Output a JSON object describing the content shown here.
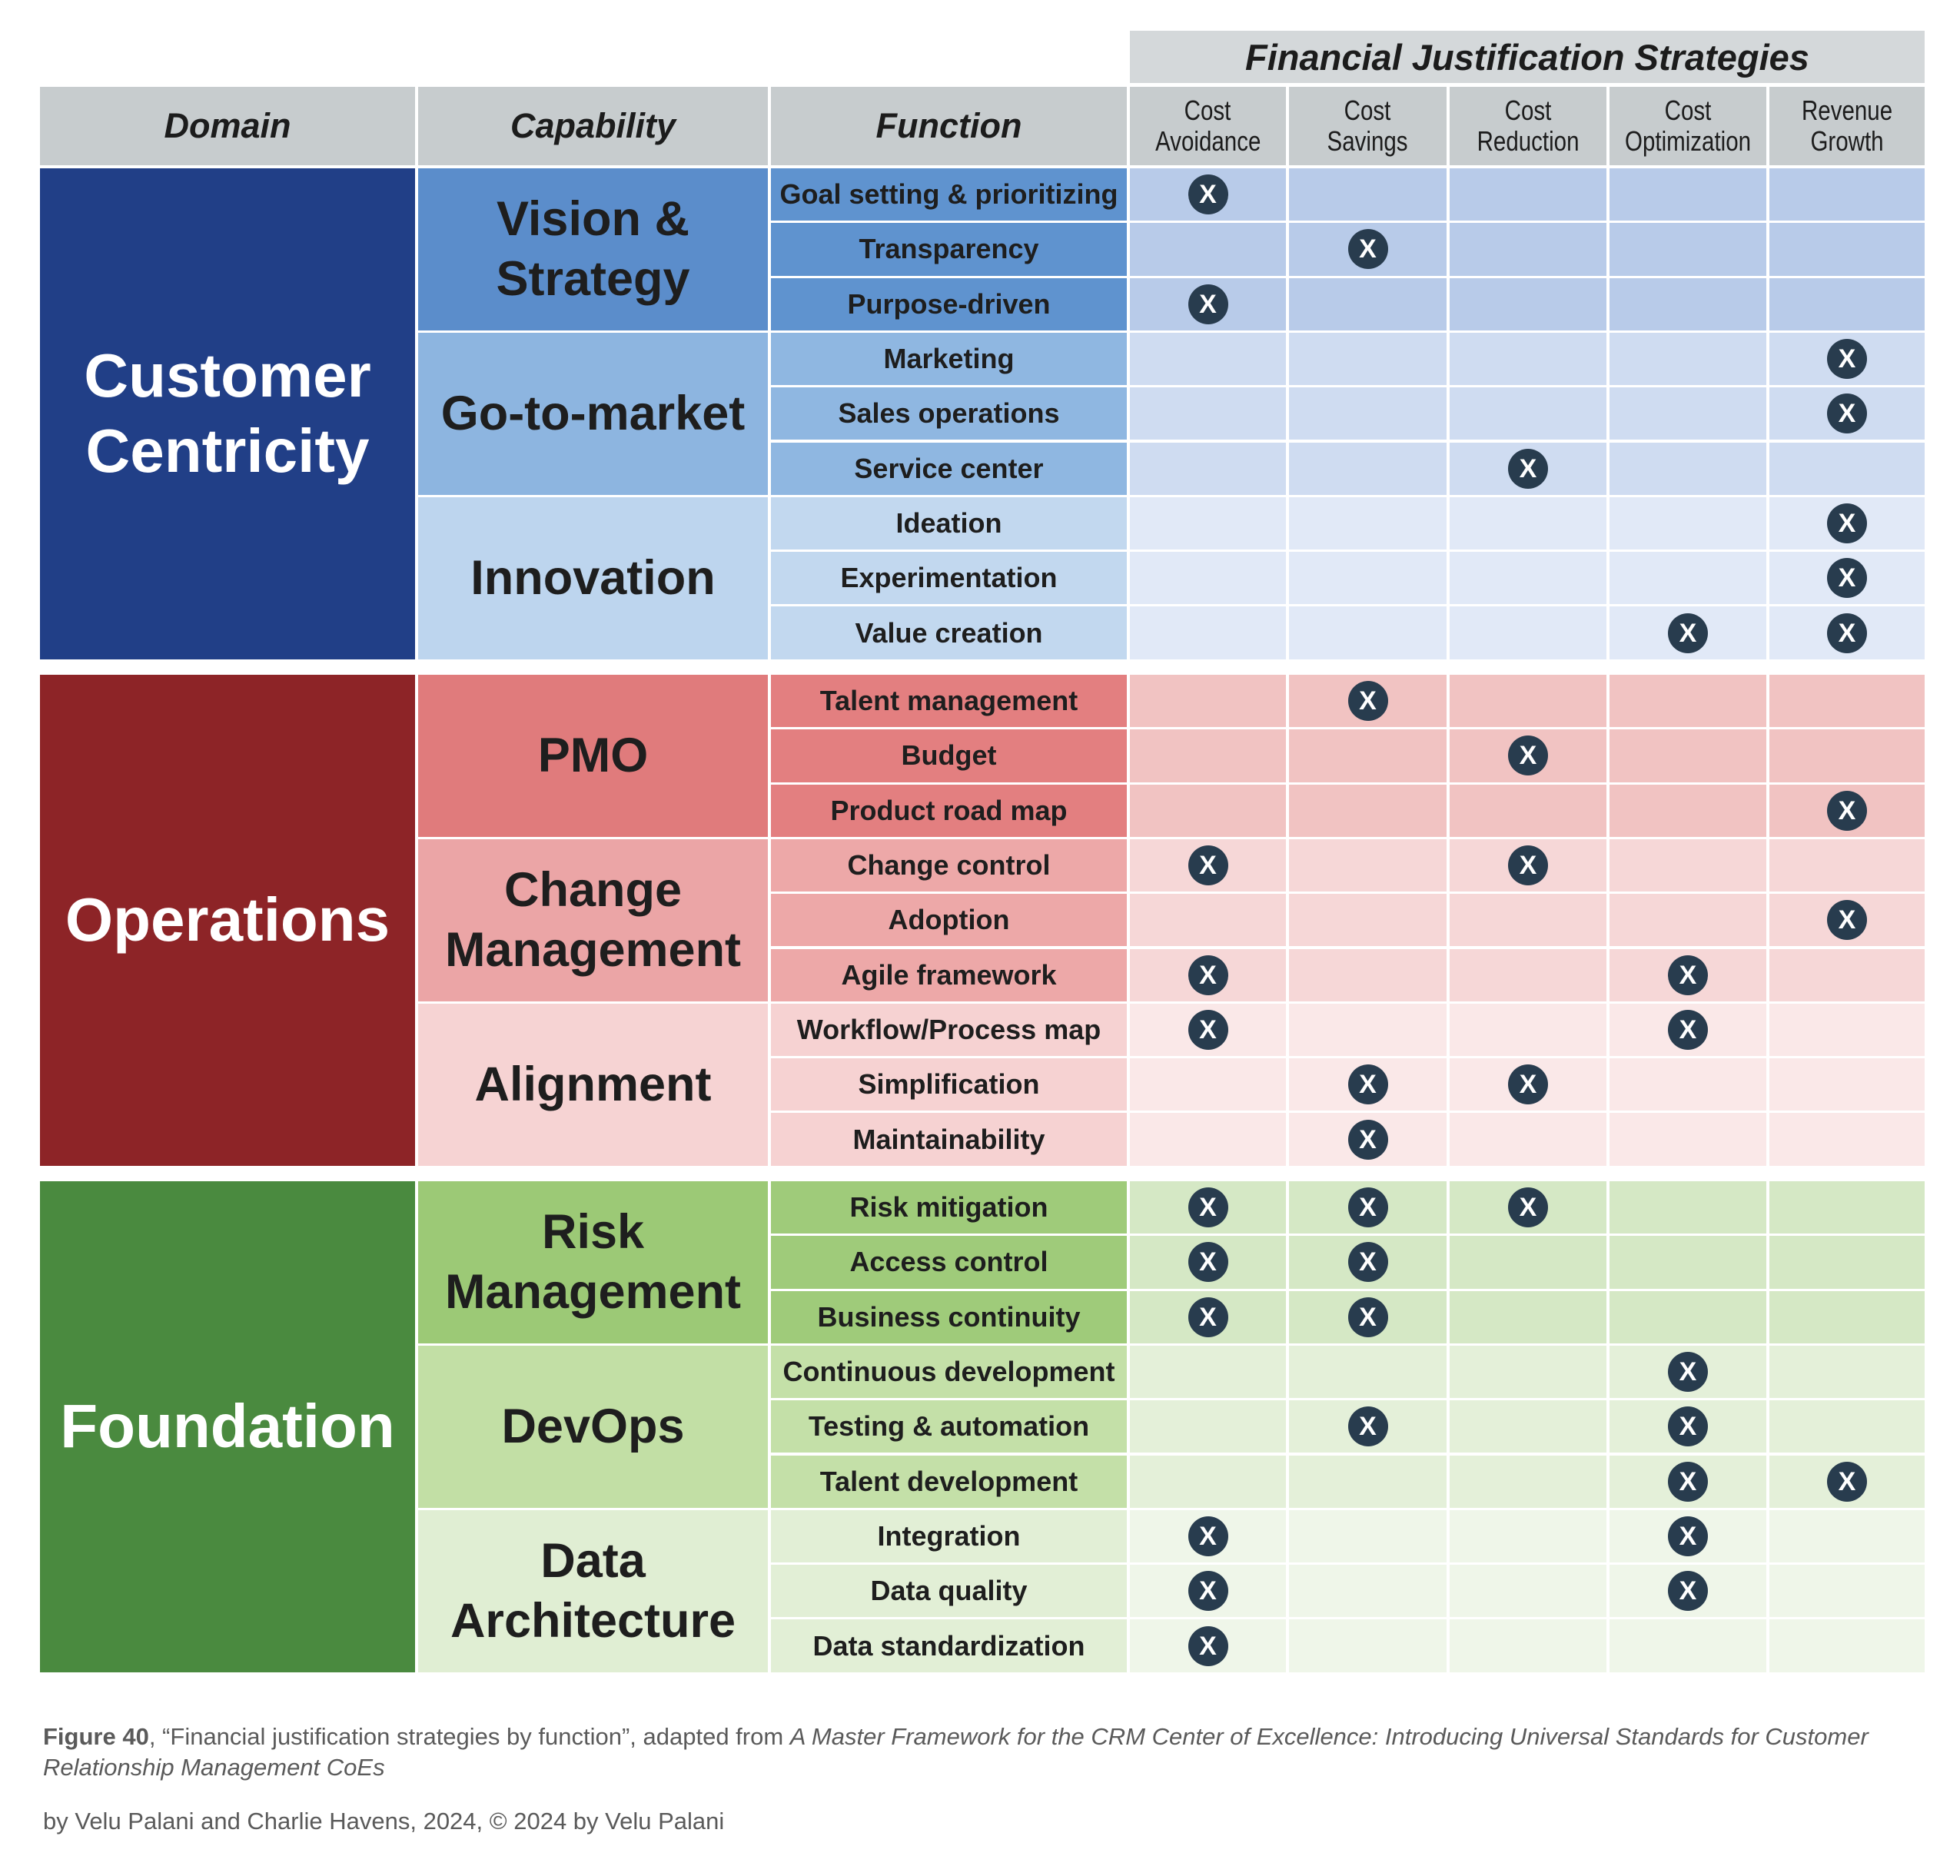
{
  "title": "Financial Justification Strategies",
  "headers": {
    "domain": "Domain",
    "capability": "Capability",
    "function": "Function"
  },
  "strategies": [
    [
      "Cost",
      "Avoidance"
    ],
    [
      "Cost",
      "Savings"
    ],
    [
      "Cost",
      "Reduction"
    ],
    [
      "Cost",
      "Optimization"
    ],
    [
      "Revenue",
      "Growth"
    ]
  ],
  "mark_symbol": "X",
  "colors": {
    "customer_centricity": "#213f87",
    "operations": "#8d2427",
    "foundation": "#4a8a3f"
  },
  "domains": [
    {
      "name": "Customer Centricity",
      "capabilities": [
        {
          "name": "Vision & Strategy",
          "functions": [
            {
              "name": "Goal setting & prioritizing",
              "marks": [
                1,
                0,
                0,
                0,
                0
              ]
            },
            {
              "name": "Transparency",
              "marks": [
                0,
                1,
                0,
                0,
                0
              ]
            },
            {
              "name": "Purpose-driven",
              "marks": [
                1,
                0,
                0,
                0,
                0
              ]
            }
          ]
        },
        {
          "name": "Go-to-market",
          "functions": [
            {
              "name": "Marketing",
              "marks": [
                0,
                0,
                0,
                0,
                1
              ]
            },
            {
              "name": "Sales operations",
              "marks": [
                0,
                0,
                0,
                0,
                1
              ]
            },
            {
              "name": "Service center",
              "marks": [
                0,
                0,
                1,
                0,
                0
              ]
            }
          ]
        },
        {
          "name": "Innovation",
          "functions": [
            {
              "name": "Ideation",
              "marks": [
                0,
                0,
                0,
                0,
                1
              ]
            },
            {
              "name": "Experimentation",
              "marks": [
                0,
                0,
                0,
                0,
                1
              ]
            },
            {
              "name": "Value creation",
              "marks": [
                0,
                0,
                0,
                1,
                1
              ]
            }
          ]
        }
      ]
    },
    {
      "name": "Operations",
      "capabilities": [
        {
          "name": "PMO",
          "functions": [
            {
              "name": "Talent management",
              "marks": [
                0,
                1,
                0,
                0,
                0
              ]
            },
            {
              "name": "Budget",
              "marks": [
                0,
                0,
                1,
                0,
                0
              ]
            },
            {
              "name": "Product road map",
              "marks": [
                0,
                0,
                0,
                0,
                1
              ]
            }
          ]
        },
        {
          "name": "Change Management",
          "functions": [
            {
              "name": "Change control",
              "marks": [
                1,
                0,
                1,
                0,
                0
              ]
            },
            {
              "name": "Adoption",
              "marks": [
                0,
                0,
                0,
                0,
                1
              ]
            },
            {
              "name": "Agile framework",
              "marks": [
                1,
                0,
                0,
                1,
                0
              ]
            }
          ]
        },
        {
          "name": "Alignment",
          "functions": [
            {
              "name": "Workflow/Process map",
              "marks": [
                1,
                0,
                0,
                1,
                0
              ]
            },
            {
              "name": "Simplification",
              "marks": [
                0,
                1,
                1,
                0,
                0
              ]
            },
            {
              "name": "Maintainability",
              "marks": [
                0,
                1,
                0,
                0,
                0
              ]
            }
          ]
        }
      ]
    },
    {
      "name": "Foundation",
      "capabilities": [
        {
          "name": "Risk Management",
          "functions": [
            {
              "name": "Risk mitigation",
              "marks": [
                1,
                1,
                1,
                0,
                0
              ]
            },
            {
              "name": "Access control",
              "marks": [
                1,
                1,
                0,
                0,
                0
              ]
            },
            {
              "name": "Business continuity",
              "marks": [
                1,
                1,
                0,
                0,
                0
              ]
            }
          ]
        },
        {
          "name": "DevOps",
          "functions": [
            {
              "name": "Continuous development",
              "marks": [
                0,
                0,
                0,
                1,
                0
              ]
            },
            {
              "name": "Testing & automation",
              "marks": [
                0,
                1,
                0,
                1,
                0
              ]
            },
            {
              "name": "Talent development",
              "marks": [
                0,
                0,
                0,
                1,
                1
              ]
            }
          ]
        },
        {
          "name": "Data Architecture",
          "functions": [
            {
              "name": "Integration",
              "marks": [
                1,
                0,
                0,
                1,
                0
              ]
            },
            {
              "name": "Data quality",
              "marks": [
                1,
                0,
                0,
                1,
                0
              ]
            },
            {
              "name": "Data standardization",
              "marks": [
                1,
                0,
                0,
                0,
                0
              ]
            }
          ]
        }
      ]
    }
  ],
  "caption": {
    "figure": "Figure 40",
    "text": ", “Financial justification strategies by function”, adapted from ",
    "source_title": "A Master Framework for the CRM Center of Excellence: Introducing Universal Standards for Customer Relationship Management CoEs",
    "credit": "by Velu Palani and Charlie Havens, 2024, © 2024 by Velu Palani"
  }
}
